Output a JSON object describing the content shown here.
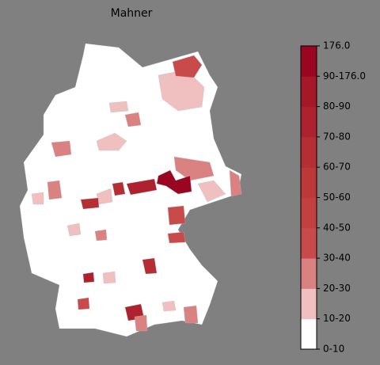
{
  "map": {
    "title": "Mahner",
    "legend": {
      "labels": [
        "0-10",
        "10-20",
        "20-30",
        "30-40",
        "40-50",
        "50-60",
        "60-70",
        "70-80",
        "80-90",
        "90-176.0",
        "176.0"
      ],
      "colors": [
        "#ffffff",
        "#f0c0c0",
        "#da8282",
        "#c94a4a",
        "#c34040",
        "#bd3838",
        "#b52e34",
        "#ad222e",
        "#a51828",
        "#9a0622"
      ]
    }
  }
}
